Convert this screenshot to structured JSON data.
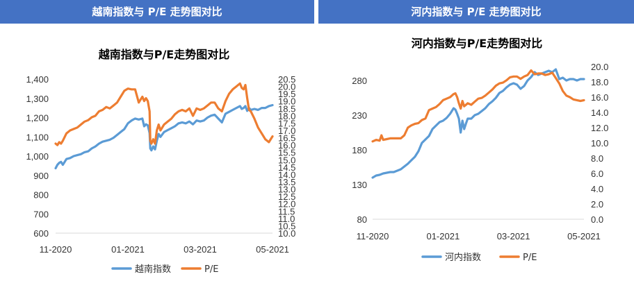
{
  "headers": {
    "left": "越南指数与 P/E 走势图对比",
    "right": "河内指数与 P/E 走势图对比"
  },
  "colors": {
    "header_bg": "#4472c4",
    "index_line": "#5b9bd5",
    "pe_line": "#ed7d31"
  },
  "chart_data": [
    {
      "type": "line",
      "title": "越南指数与P/E走势图对比",
      "x_ticks": [
        "11-2020",
        "01-2021",
        "03-2021",
        "05-2021"
      ],
      "x_range": [
        0,
        6
      ],
      "y_left": {
        "ticks": [
          "600",
          "700",
          "800",
          "900",
          "1,000",
          "1,100",
          "1,200",
          "1,300",
          "1,400"
        ],
        "range": [
          600,
          1400
        ]
      },
      "y_right": {
        "ticks": [
          "10.0",
          "10.5",
          "11.0",
          "11.5",
          "12.0",
          "12.5",
          "13.0",
          "13.5",
          "14.0",
          "14.5",
          "15.0",
          "15.5",
          "16.0",
          "16.5",
          "17.0",
          "17.5",
          "18.0",
          "18.5",
          "19.0",
          "19.5",
          "20.0",
          "20.5"
        ],
        "range": [
          10.0,
          20.5
        ]
      },
      "legend": {
        "position": "bottom",
        "entries": [
          "越南指数",
          "P/E"
        ]
      },
      "series": [
        {
          "name": "越南指数",
          "axis": "left",
          "color": "#5b9bd5",
          "x": [
            0,
            0.05,
            0.1,
            0.15,
            0.2,
            0.3,
            0.4,
            0.5,
            0.6,
            0.7,
            0.8,
            0.9,
            1.0,
            1.1,
            1.2,
            1.3,
            1.4,
            1.5,
            1.6,
            1.7,
            1.8,
            1.9,
            2.0,
            2.1,
            2.2,
            2.3,
            2.4,
            2.45,
            2.5,
            2.55,
            2.6,
            2.62,
            2.65,
            2.7,
            2.75,
            2.8,
            2.85,
            2.9,
            3.0,
            3.1,
            3.2,
            3.3,
            3.4,
            3.5,
            3.6,
            3.7,
            3.8,
            3.9,
            4.0,
            4.1,
            4.2,
            4.3,
            4.4,
            4.5,
            4.6,
            4.7,
            4.8,
            4.9,
            5.0,
            5.1,
            5.15,
            5.2,
            5.25,
            5.3,
            5.35,
            5.4,
            5.5,
            5.6,
            5.7,
            5.8,
            5.9,
            6.0
          ],
          "values": [
            937,
            955,
            965,
            970,
            955,
            985,
            990,
            1000,
            1005,
            1010,
            1020,
            1025,
            1040,
            1050,
            1065,
            1075,
            1080,
            1085,
            1095,
            1110,
            1125,
            1140,
            1170,
            1185,
            1195,
            1190,
            1195,
            1155,
            1165,
            1160,
            1120,
            1040,
            1030,
            1050,
            1035,
            1080,
            1115,
            1100,
            1125,
            1135,
            1145,
            1155,
            1170,
            1175,
            1170,
            1180,
            1165,
            1185,
            1180,
            1185,
            1200,
            1210,
            1215,
            1195,
            1175,
            1220,
            1230,
            1240,
            1250,
            1260,
            1245,
            1250,
            1260,
            1235,
            1250,
            1240,
            1245,
            1240,
            1250,
            1250,
            1260,
            1265
          ]
        },
        {
          "name": "P/E",
          "axis": "right",
          "color": "#ed7d31",
          "x": [
            0,
            0.05,
            0.1,
            0.15,
            0.2,
            0.3,
            0.4,
            0.5,
            0.6,
            0.7,
            0.8,
            0.9,
            1.0,
            1.1,
            1.2,
            1.3,
            1.4,
            1.5,
            1.6,
            1.7,
            1.8,
            1.9,
            2.0,
            2.1,
            2.2,
            2.3,
            2.4,
            2.45,
            2.5,
            2.55,
            2.6,
            2.62,
            2.65,
            2.7,
            2.75,
            2.8,
            2.85,
            2.9,
            3.0,
            3.1,
            3.2,
            3.3,
            3.4,
            3.5,
            3.6,
            3.7,
            3.8,
            3.9,
            4.0,
            4.1,
            4.2,
            4.3,
            4.4,
            4.5,
            4.6,
            4.7,
            4.8,
            4.9,
            5.0,
            5.1,
            5.15,
            5.2,
            5.25,
            5.3,
            5.35,
            5.4,
            5.5,
            5.6,
            5.7,
            5.8,
            5.9,
            6.0
          ],
          "values": [
            16.1,
            16.0,
            16.2,
            16.1,
            16.3,
            16.8,
            17.0,
            17.1,
            17.2,
            17.4,
            17.6,
            17.7,
            17.9,
            18.0,
            18.3,
            18.4,
            18.6,
            18.5,
            18.7,
            18.9,
            19.3,
            19.7,
            19.85,
            19.8,
            19.8,
            18.9,
            19.3,
            19.0,
            19.2,
            19.0,
            18.3,
            16.3,
            16.1,
            16.4,
            16.1,
            17.0,
            17.4,
            17.0,
            17.4,
            17.6,
            17.8,
            18.1,
            18.3,
            18.4,
            18.3,
            18.5,
            18.0,
            18.5,
            18.4,
            18.5,
            18.7,
            18.9,
            18.9,
            18.5,
            18.3,
            19.0,
            19.5,
            19.8,
            20.0,
            20.2,
            19.9,
            19.8,
            20.1,
            19.2,
            18.4,
            18.3,
            17.8,
            17.2,
            16.8,
            16.4,
            16.2,
            16.6
          ]
        }
      ]
    },
    {
      "type": "line",
      "title": "河内指数与P/E走势图对比",
      "x_ticks": [
        "11-2020",
        "01-2021",
        "03-2021",
        "05-2021"
      ],
      "x_range": [
        0,
        6
      ],
      "y_left": {
        "ticks": [
          "80",
          "130",
          "180",
          "230",
          "280"
        ],
        "range": [
          80,
          300
        ]
      },
      "y_right": {
        "ticks": [
          "0.0",
          "2.0",
          "4.0",
          "6.0",
          "8.0",
          "10.0",
          "12.0",
          "14.0",
          "16.0",
          "18.0",
          "20.0"
        ],
        "range": [
          0,
          20
        ]
      },
      "legend": {
        "position": "bottom",
        "entries": [
          "河内指数",
          "P/E"
        ]
      },
      "series": [
        {
          "name": "河内指数",
          "axis": "left",
          "color": "#5b9bd5",
          "x": [
            0,
            0.1,
            0.2,
            0.3,
            0.4,
            0.5,
            0.6,
            0.7,
            0.8,
            0.9,
            1.0,
            1.1,
            1.2,
            1.3,
            1.4,
            1.5,
            1.6,
            1.7,
            1.8,
            1.9,
            2.0,
            2.1,
            2.2,
            2.3,
            2.35,
            2.4,
            2.45,
            2.5,
            2.55,
            2.6,
            2.65,
            2.7,
            2.8,
            2.9,
            3.0,
            3.1,
            3.2,
            3.3,
            3.4,
            3.5,
            3.6,
            3.7,
            3.8,
            3.9,
            4.0,
            4.1,
            4.2,
            4.3,
            4.4,
            4.5,
            4.6,
            4.7,
            4.8,
            4.9,
            5.0,
            5.1,
            5.2,
            5.3,
            5.4,
            5.5,
            5.6,
            5.7,
            5.8,
            5.9,
            6.0
          ],
          "values": [
            140,
            143,
            144,
            146,
            147,
            148,
            148,
            150,
            152,
            156,
            160,
            165,
            170,
            178,
            190,
            195,
            200,
            210,
            215,
            220,
            222,
            226,
            232,
            240,
            238,
            232,
            225,
            205,
            222,
            210,
            218,
            225,
            225,
            230,
            232,
            236,
            240,
            246,
            250,
            255,
            262,
            265,
            270,
            274,
            276,
            274,
            268,
            272,
            280,
            285,
            292,
            288,
            290,
            292,
            294,
            292,
            296,
            282,
            284,
            280,
            282,
            282,
            280,
            282,
            282
          ]
        },
        {
          "name": "P/E",
          "axis": "right",
          "color": "#ed7d31",
          "x": [
            0,
            0.1,
            0.2,
            0.25,
            0.3,
            0.4,
            0.5,
            0.6,
            0.7,
            0.8,
            0.9,
            1.0,
            1.1,
            1.2,
            1.3,
            1.4,
            1.5,
            1.6,
            1.7,
            1.8,
            1.9,
            2.0,
            2.1,
            2.2,
            2.3,
            2.35,
            2.4,
            2.45,
            2.5,
            2.55,
            2.6,
            2.65,
            2.7,
            2.8,
            2.9,
            3.0,
            3.1,
            3.2,
            3.3,
            3.4,
            3.5,
            3.6,
            3.7,
            3.8,
            3.9,
            4.0,
            4.1,
            4.2,
            4.3,
            4.4,
            4.5,
            4.6,
            4.7,
            4.8,
            4.9,
            5.0,
            5.1,
            5.2,
            5.3,
            5.4,
            5.5,
            5.6,
            5.7,
            5.8,
            5.9,
            6.0
          ],
          "values": [
            10.2,
            10.4,
            10.3,
            11.0,
            10.4,
            10.5,
            10.6,
            10.6,
            10.6,
            10.6,
            11.0,
            12.0,
            12.3,
            12.5,
            12.6,
            13.0,
            13.2,
            14.3,
            14.5,
            14.7,
            15.1,
            15.6,
            15.8,
            16.0,
            16.4,
            16.5,
            16.0,
            15.2,
            14.5,
            15.5,
            14.8,
            15.0,
            15.2,
            15.0,
            15.4,
            15.8,
            15.9,
            16.2,
            16.6,
            17.0,
            17.5,
            17.8,
            17.9,
            18.2,
            18.6,
            18.7,
            18.7,
            18.4,
            18.7,
            18.9,
            19.5,
            19.0,
            19.1,
            19.1,
            18.9,
            19.0,
            19.2,
            18.5,
            17.8,
            16.8,
            16.2,
            16.0,
            15.7,
            15.6,
            15.5,
            15.6
          ]
        }
      ]
    }
  ]
}
